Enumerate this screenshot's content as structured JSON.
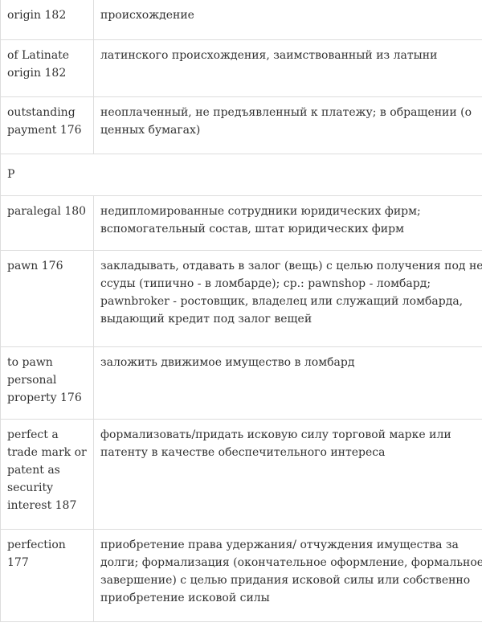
{
  "rows": [
    {
      "term": "origin 182",
      "definition": "происхождение"
    },
    {
      "term": "of Latinate origin 182",
      "definition": "латинского происхождения, заимствованный из латыни"
    },
    {
      "term": "outstanding payment 176",
      "definition": "неоплаченный, не предъявленный к платежу; в обращении (о ценных бумагах)"
    },
    {
      "section": "P"
    },
    {
      "term": "paralegal 180",
      "definition": "недипломированные сотрудники юридических фирм; вспомогательный состав, штат юридических фирм"
    },
    {
      "term": "pawn 176",
      "definition": "закладывать, отдавать в залог (вещь) с целью получения под нее ссуды (типично - в ломбарде); ср.: pawnshop - ломбард; pawnbroker - ростовщик, владелец или служащий ломбарда, выдающий кредит под залог вещей"
    },
    {
      "term": "to pawn personal property 176",
      "definition": "заложить движимое имущество в ломбард"
    },
    {
      "term": "perfect a trade mark or patent as security interest 187",
      "definition": "формализовать/придать исковую силу торговой марке или патенту в качестве обеспечительного интереса"
    },
    {
      "term": "perfection 177",
      "definition": "приобретение права удержания/ отчуждения имущества за долги; формализация (окончательное оформление, формальное завершение) с целью придания исковой силы или собственно приобретение исковой силы"
    }
  ]
}
